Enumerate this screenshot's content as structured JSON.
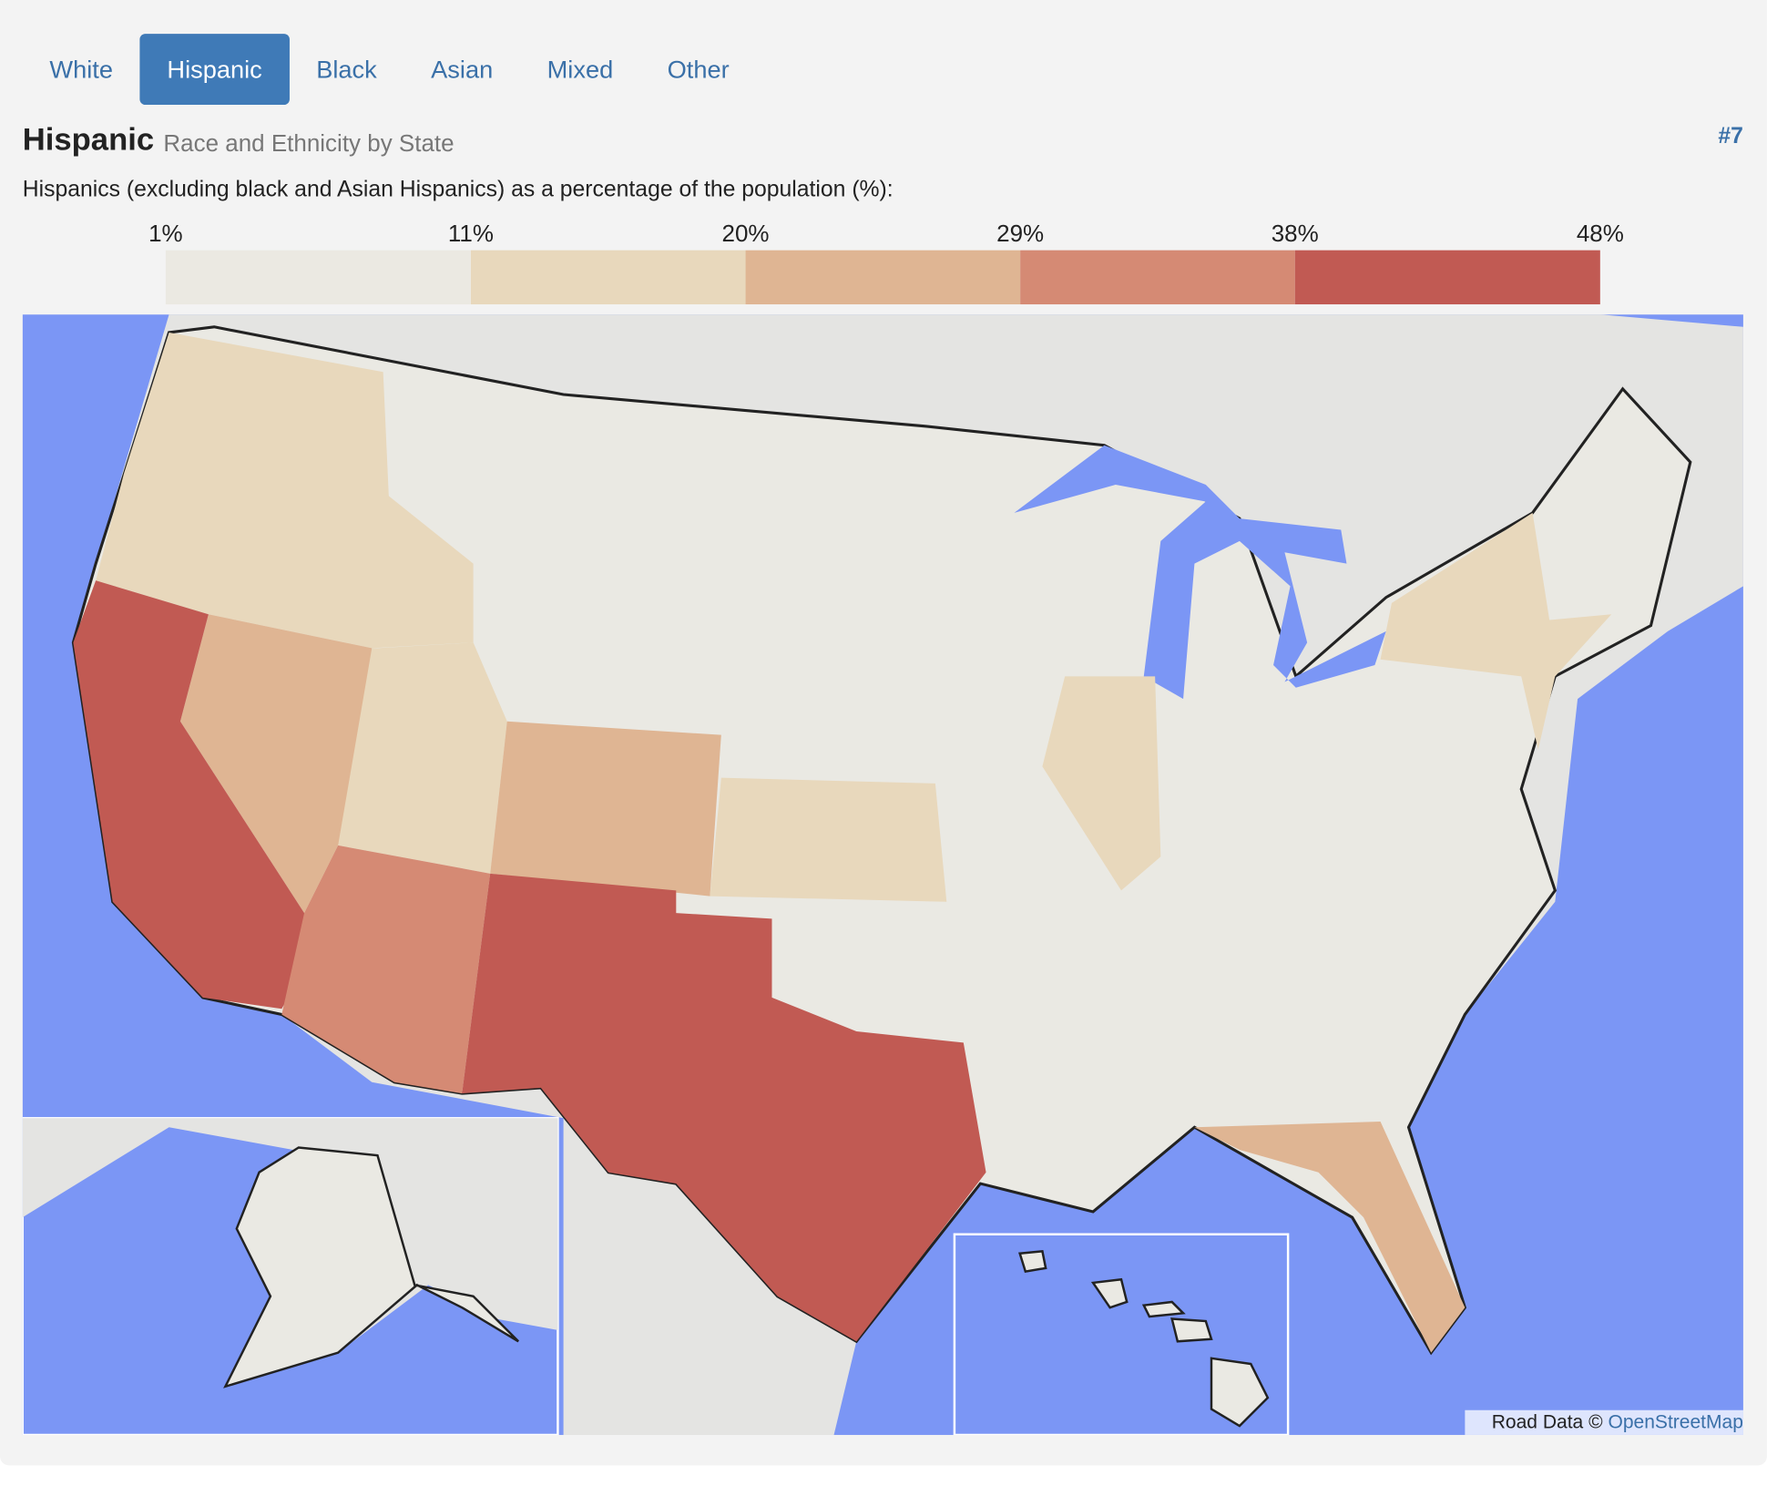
{
  "tabs": [
    "White",
    "Hispanic",
    "Black",
    "Asian",
    "Mixed",
    "Other"
  ],
  "active_tab": 1,
  "header": {
    "title": "Hispanic",
    "subtitle": "Race and Ethnicity by State",
    "rank": "#7"
  },
  "description": "Hispanics (excluding black and Asian Hispanics) as a percentage of the population (%):",
  "legend": {
    "ticks": [
      {
        "value": 1,
        "label": "1%"
      },
      {
        "value": 11,
        "label": "11%"
      },
      {
        "value": 20,
        "label": "20%"
      },
      {
        "value": 29,
        "label": "29%"
      },
      {
        "value": 38,
        "label": "38%"
      },
      {
        "value": 48,
        "label": "48%"
      }
    ],
    "colors": [
      "#ebe9e2",
      "#e8d8bc",
      "#dfb593",
      "#d58a74",
      "#c15a53"
    ]
  },
  "attribution": {
    "text": "Road Data ©",
    "link": "OpenStreetMap"
  }
}
